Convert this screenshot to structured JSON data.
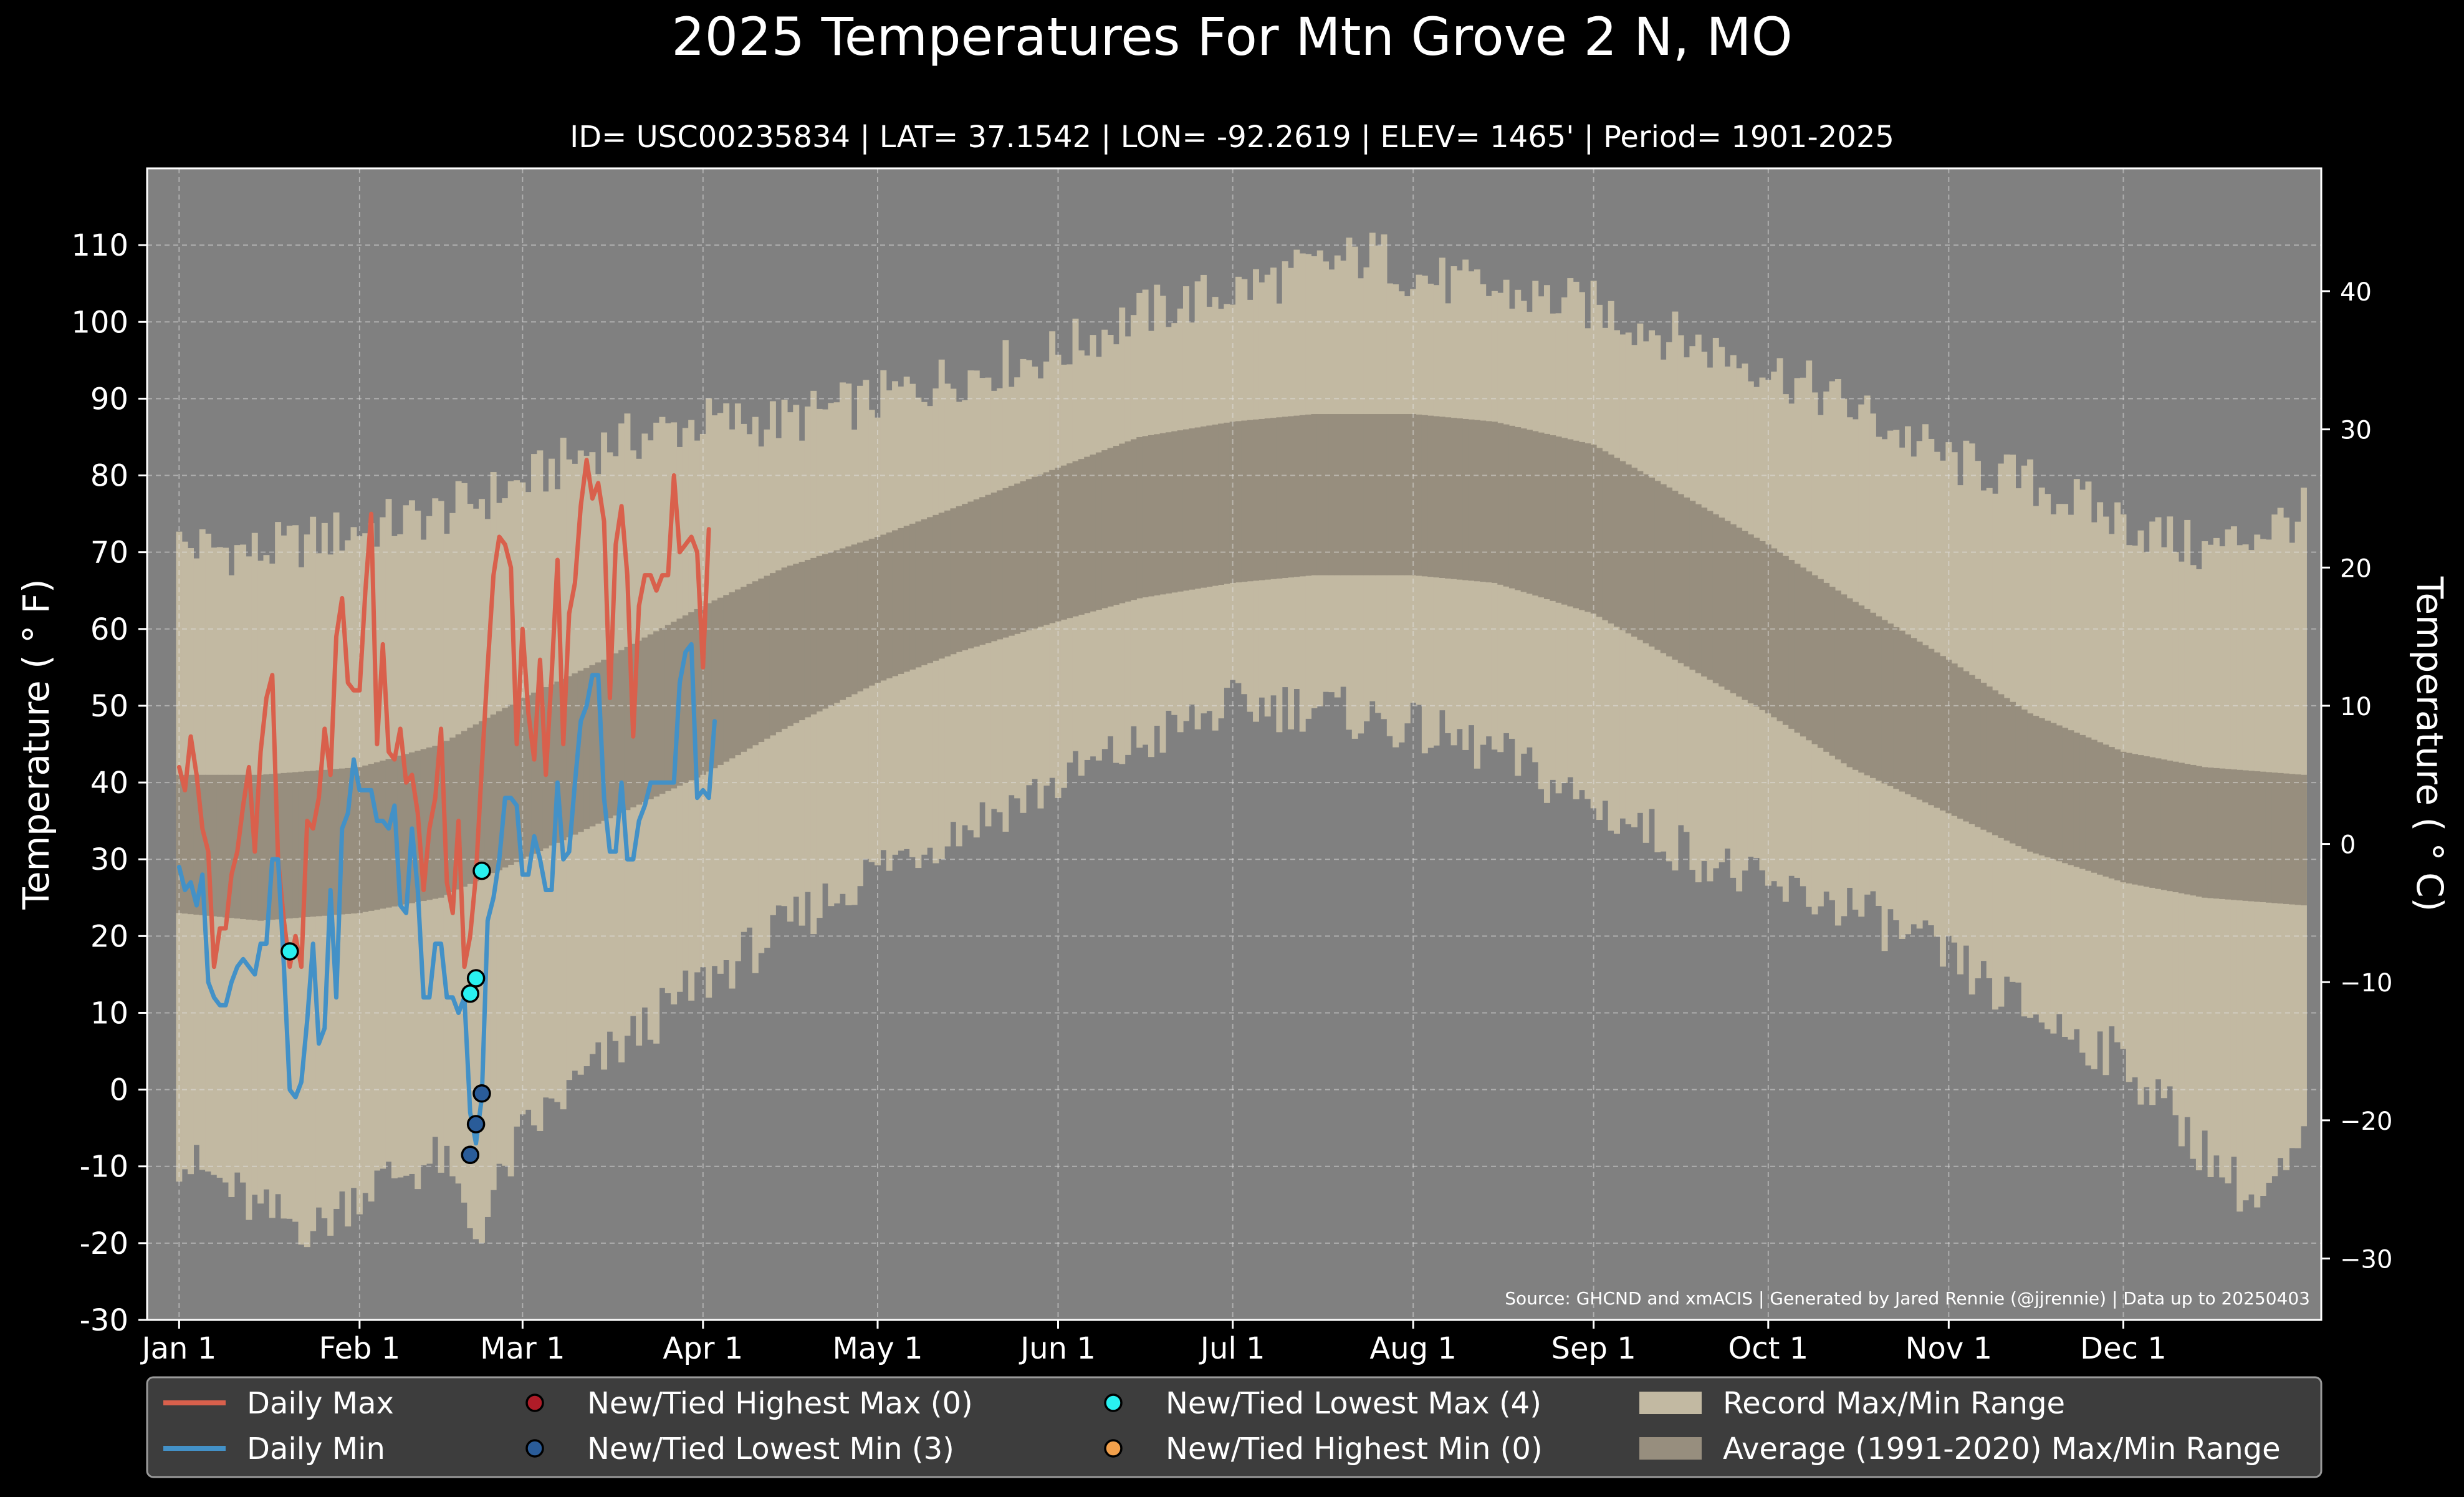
{
  "title": "2025 Temperatures For Mtn Grove 2 N, MO",
  "subtitle": "ID= USC00235834 | LAT= 37.1542 | LON= -92.2619 | ELEV= 1465' | Period= 1901-2025",
  "source": "Source: GHCND and xmACIS | Generated by Jared Rennie (@jjrennie) | Data up to 20250403",
  "colors": {
    "background": "#000000",
    "plot_background": "#808080",
    "record_range": "#c2b9a2",
    "average_range": "#978e7e",
    "daily_max": "#d9604c",
    "daily_min": "#4391c7",
    "highest_max_marker": "#b01c28",
    "lowest_min_marker": "#2a5c99",
    "lowest_max_marker": "#29f0f0",
    "highest_min_marker": "#f2a04b",
    "legend_bg": "#3d3d3d"
  },
  "chart_data": {
    "type": "line",
    "xlabel": "",
    "ylabel": "Temperature ($^\\circ$F)",
    "ylabel_display": "Temperature ( ° F)",
    "ylabel_right": "Temperature ( ° C)",
    "ylim": [
      -30,
      120
    ],
    "y_ticks": [
      -30,
      -20,
      -10,
      0,
      10,
      20,
      30,
      40,
      50,
      60,
      70,
      80,
      90,
      100,
      110
    ],
    "y_tick_labels": [
      "-30",
      "-20",
      "-10",
      "0",
      "10",
      "20",
      "30",
      "40",
      "50",
      "60",
      "70",
      "80",
      "90",
      "100",
      "110"
    ],
    "y2_ticks": [
      -30,
      -20,
      -10,
      0,
      10,
      20,
      30,
      40
    ],
    "y2_tick_labels": [
      "−30",
      "−20",
      "−10",
      "0",
      "10",
      "20",
      "30",
      "40"
    ],
    "xlim_days": [
      -4.5,
      369
    ],
    "x_ticks": [
      1,
      32,
      60,
      91,
      121,
      152,
      182,
      213,
      244,
      274,
      305,
      335
    ],
    "x_tick_labels": [
      "Jan 1",
      "Feb 1",
      "Mar 1",
      "Apr 1",
      "May 1",
      "Jun 1",
      "Jul 1",
      "Aug 1",
      "Sep 1",
      "Oct 1",
      "Nov 1",
      "Dec 1"
    ],
    "grid": true,
    "legend_position": "bottom",
    "legend": [
      {
        "label": "Daily Max",
        "kind": "line",
        "color": "#d9604c"
      },
      {
        "label": "Daily Min",
        "kind": "line",
        "color": "#4391c7"
      },
      {
        "label": "New/Tied Highest Max (0)",
        "kind": "dot",
        "color": "#b01c28"
      },
      {
        "label": "New/Tied Lowest Min (3)",
        "kind": "dot",
        "color": "#2a5c99"
      },
      {
        "label": "New/Tied Lowest Max (4)",
        "kind": "dot",
        "color": "#29f0f0"
      },
      {
        "label": "New/Tied Highest Min (0)",
        "kind": "dot",
        "color": "#f2a04b"
      },
      {
        "label": "Record Max/Min Range",
        "kind": "patch",
        "color": "#c2b9a2"
      },
      {
        "label": "Average (1991-2020) Max/Min Range",
        "kind": "patch",
        "color": "#978e7e"
      }
    ],
    "record_max_anchors": {
      "day": [
        1,
        15,
        32,
        46,
        60,
        74,
        91,
        105,
        121,
        135,
        152,
        166,
        182,
        196,
        207,
        213,
        227,
        244,
        258,
        274,
        288,
        305,
        319,
        335,
        349,
        366
      ],
      "value": [
        71,
        70,
        73,
        75,
        79,
        84,
        87,
        87,
        90,
        93,
        96,
        101,
        104,
        107,
        109,
        106,
        104,
        102,
        98,
        94,
        89,
        82,
        79,
        74,
        70,
        75
      ]
    },
    "record_min_anchors": {
      "day": [
        1,
        8,
        15,
        25,
        32,
        46,
        52,
        60,
        74,
        91,
        105,
        121,
        135,
        152,
        166,
        182,
        196,
        213,
        227,
        244,
        258,
        274,
        288,
        305,
        319,
        335,
        349,
        358,
        366
      ],
      "value": [
        -9,
        -12,
        -16,
        -18,
        -13,
        -9,
        -19,
        -6,
        4,
        14,
        21,
        29,
        34,
        40,
        45,
        50,
        50,
        47,
        44,
        37,
        32,
        26,
        24,
        17,
        10,
        4,
        -8,
        -15,
        -8
      ]
    },
    "average_max_anchors": {
      "day": [
        1,
        15,
        32,
        46,
        60,
        74,
        91,
        105,
        121,
        135,
        152,
        166,
        182,
        196,
        207,
        213,
        227,
        244,
        258,
        274,
        288,
        305,
        319,
        335,
        349,
        366
      ],
      "value": [
        41,
        41,
        42,
        45,
        51,
        56,
        63,
        68,
        72,
        76,
        81,
        85,
        87,
        88,
        88,
        88,
        87,
        84,
        78,
        71,
        64,
        56,
        49,
        44,
        42,
        41
      ]
    },
    "average_min_anchors": {
      "day": [
        1,
        15,
        32,
        46,
        60,
        74,
        91,
        105,
        121,
        135,
        152,
        166,
        182,
        196,
        207,
        213,
        227,
        244,
        258,
        274,
        288,
        305,
        319,
        335,
        349,
        366
      ],
      "value": [
        23,
        22,
        23,
        25,
        30,
        35,
        41,
        47,
        53,
        57,
        61,
        64,
        66,
        67,
        67,
        67,
        66,
        62,
        56,
        49,
        42,
        36,
        31,
        27,
        25,
        24
      ]
    },
    "series": [
      {
        "name": "Daily Max",
        "start_day": 1,
        "values": [
          42,
          39,
          46,
          41,
          34,
          31,
          16,
          21,
          21,
          28,
          31,
          37,
          42,
          31,
          44,
          51,
          54,
          30,
          22,
          16,
          20,
          16,
          35,
          34,
          38,
          47,
          41,
          59,
          64,
          53,
          52,
          52,
          65,
          75,
          45,
          58,
          44,
          43,
          47,
          40,
          41,
          36,
          26,
          34,
          38,
          47,
          27,
          23,
          35,
          16,
          20,
          28,
          42,
          55,
          67,
          72,
          71,
          68,
          45,
          60,
          49,
          43,
          56,
          41,
          54,
          69,
          45,
          62,
          66,
          76,
          82,
          77,
          79,
          74,
          51,
          71,
          76,
          67,
          46,
          63,
          67,
          67,
          65,
          67,
          67,
          80,
          70,
          71,
          72,
          70,
          55,
          73
        ]
      },
      {
        "name": "Daily Min",
        "start_day": 1,
        "values": [
          29,
          26,
          27,
          24,
          28,
          14,
          12,
          11,
          11,
          14,
          16,
          17,
          16,
          15,
          19,
          19,
          30,
          30,
          16,
          0,
          -1,
          1,
          9,
          19,
          6,
          8,
          26,
          12,
          34,
          36,
          43,
          39,
          39,
          39,
          35,
          35,
          34,
          37,
          24,
          23,
          34,
          26,
          12,
          12,
          19,
          19,
          12,
          12,
          10,
          12,
          -3,
          -7,
          -1,
          22,
          25,
          30,
          38,
          38,
          37,
          28,
          28,
          33,
          30,
          26,
          26,
          40,
          30,
          31,
          40,
          48,
          50,
          54,
          54,
          38,
          31,
          31,
          40,
          30,
          30,
          35,
          37,
          40,
          40,
          40,
          40,
          40,
          53,
          57,
          58,
          38,
          39,
          38,
          48
        ]
      }
    ],
    "records": [
      {
        "type": "New/Tied Lowest Max",
        "day": 20,
        "value": 18
      },
      {
        "type": "New/Tied Lowest Max",
        "day": 51,
        "value": 12.5
      },
      {
        "type": "New/Tied Lowest Max",
        "day": 52,
        "value": 14.5
      },
      {
        "type": "New/Tied Lowest Max",
        "day": 53,
        "value": 28.5
      },
      {
        "type": "New/Tied Lowest Min",
        "day": 51,
        "value": -8.5
      },
      {
        "type": "New/Tied Lowest Min",
        "day": 52,
        "value": -4.5
      },
      {
        "type": "New/Tied Lowest Min",
        "day": 53,
        "value": -0.5
      }
    ]
  }
}
